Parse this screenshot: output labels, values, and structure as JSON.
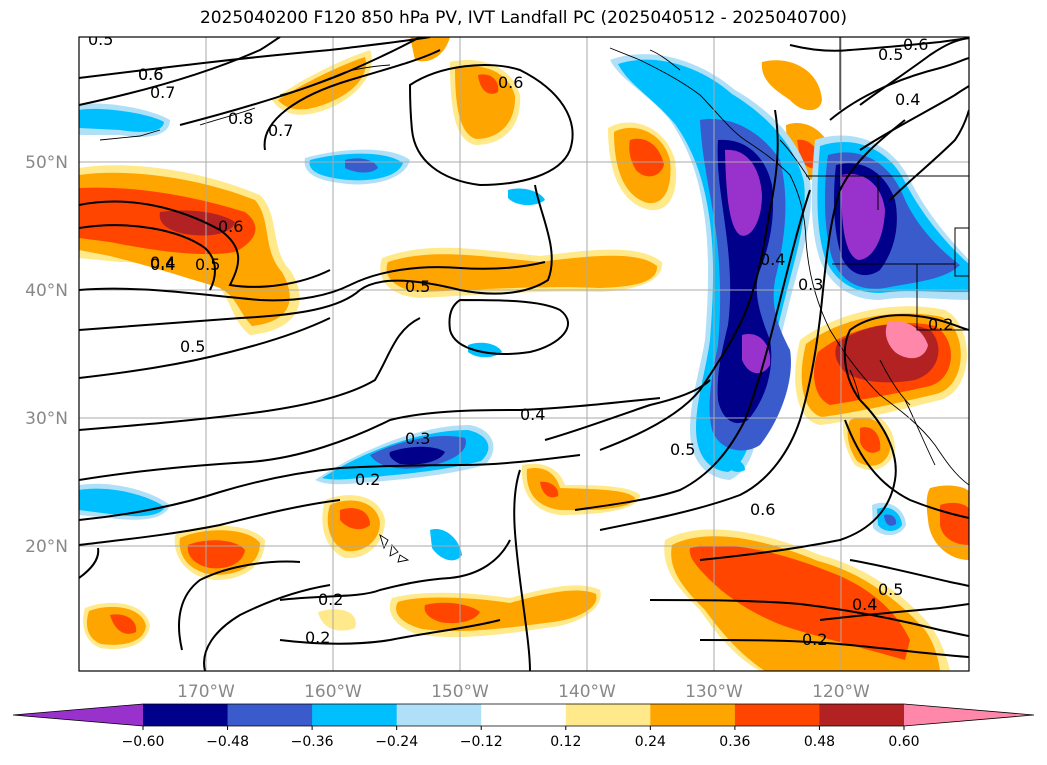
{
  "title": "2025040200 F120 850 hPa PV, IVT Landfall PC (2025040512 - 2025040700)",
  "lat_labels": [
    "50°N",
    "40°N",
    "30°N",
    "20°N"
  ],
  "lon_labels": [
    "170°W",
    "160°W",
    "150°W",
    "140°W",
    "130°W",
    "120°W"
  ],
  "colorbar": {
    "extend": "both",
    "colors": [
      "#9932CC",
      "#00008B",
      "#3A5BCC",
      "#00BFFF",
      "#B0E0F8",
      "#FFFFFF",
      "#FFE98A",
      "#FFA500",
      "#FF4500",
      "#B22222",
      "#FF88AA"
    ],
    "tick_labels": [
      "−0.60",
      "−0.48",
      "−0.36",
      "−0.24",
      "−0.12",
      "0.12",
      "0.24",
      "0.36",
      "0.48",
      "0.60"
    ]
  },
  "contour_labels": [
    "0.5",
    "0.6",
    "0.7",
    "0.8",
    "0.7",
    "0.6",
    "0.6",
    "0.5",
    "0.4",
    "0.6",
    "0.5",
    "0.4",
    "0.5",
    "0.5",
    "0.4",
    "0.3",
    "0.2",
    "0.4",
    "0.5",
    "0.6",
    "0.2",
    "0.2",
    "0.4",
    "0.5",
    "0.2",
    "0.4",
    "0.3",
    "0.2",
    "0.6"
  ]
}
